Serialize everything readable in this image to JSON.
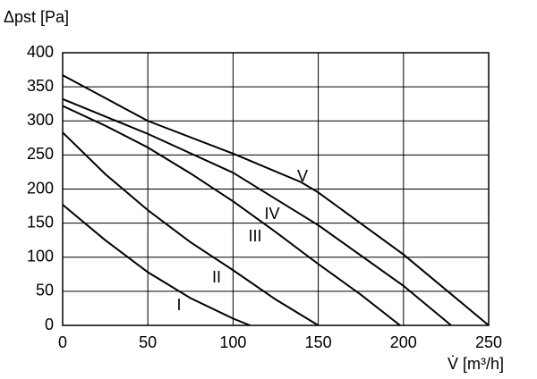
{
  "chart_data": {
    "type": "line",
    "y_label": "Δpst [Pa]",
    "x_label": "V̇ [m³/h]",
    "xlim": [
      0,
      250
    ],
    "xticks": [
      0,
      50,
      100,
      150,
      200,
      250
    ],
    "ylim": [
      0,
      400
    ],
    "yticks": [
      0,
      50,
      100,
      150,
      200,
      250,
      300,
      350,
      400
    ],
    "grid": true,
    "series": [
      {
        "name": "I",
        "color": "#000000",
        "x": [
          0,
          25,
          50,
          75,
          100,
          110
        ],
        "values": [
          177,
          125,
          78,
          40,
          10,
          0
        ]
      },
      {
        "name": "II",
        "color": "#000000",
        "x": [
          0,
          25,
          50,
          75,
          100,
          125,
          150
        ],
        "values": [
          283,
          222,
          169,
          122,
          81,
          38,
          0
        ]
      },
      {
        "name": "III",
        "color": "#000000",
        "x": [
          0,
          25,
          50,
          75,
          100,
          125,
          150,
          175,
          198
        ],
        "values": [
          322,
          293,
          261,
          223,
          182,
          137,
          90,
          45,
          0
        ]
      },
      {
        "name": "IV",
        "color": "#000000",
        "x": [
          0,
          50,
          100,
          150,
          200,
          228
        ],
        "values": [
          332,
          281,
          224,
          147,
          58,
          0
        ]
      },
      {
        "name": "V",
        "color": "#000000",
        "x": [
          0,
          50,
          100,
          140,
          150,
          200,
          250
        ],
        "values": [
          367,
          300,
          252,
          210,
          195,
          104,
          0
        ]
      }
    ]
  }
}
